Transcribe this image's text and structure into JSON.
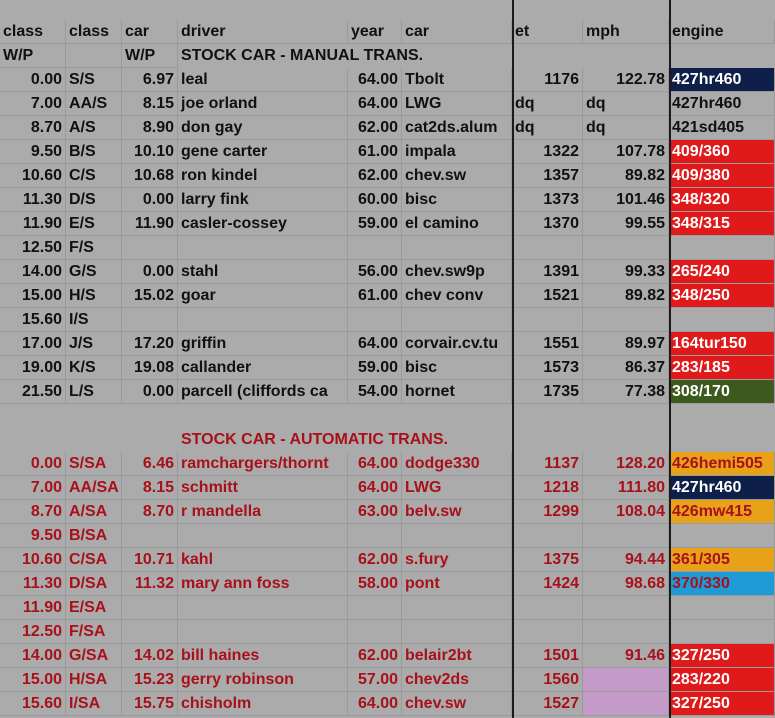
{
  "header": {
    "row1": [
      "class",
      "class",
      "car",
      "driver",
      "year",
      "car",
      "et",
      "mph",
      "engine"
    ],
    "row2": [
      "W/P",
      "",
      "W/P"
    ]
  },
  "sections": {
    "manual_title": "STOCK CAR - MANUAL TRANS.",
    "automatic_title": "STOCK CAR - AUTOMATIC TRANS."
  },
  "manual_rows": [
    {
      "wp": "0.00",
      "cls": "S/S",
      "carwp": "6.97",
      "driver": "leal",
      "year": "64.00",
      "car": "Tbolt",
      "et": "1176",
      "mph": "122.78",
      "engine": "427hr460",
      "eng_bg": "#0e1f4a",
      "eng_fg": "#ffffff"
    },
    {
      "wp": "7.00",
      "cls": "AA/S",
      "carwp": "8.15",
      "driver": "joe orland",
      "year": "64.00",
      "car": "LWG",
      "et": "dq",
      "mph": "dq",
      "engine": "427hr460",
      "eng_bg": "",
      "eng_fg": "#111111"
    },
    {
      "wp": "8.70",
      "cls": "A/S",
      "carwp": "8.90",
      "driver": "don gay",
      "year": "62.00",
      "car": "cat2ds.alum",
      "et": "dq",
      "mph": "dq",
      "engine": "421sd405",
      "eng_bg": "",
      "eng_fg": "#111111"
    },
    {
      "wp": "9.50",
      "cls": "B/S",
      "carwp": "10.10",
      "driver": "gene carter",
      "year": "61.00",
      "car": "impala",
      "et": "1322",
      "mph": "107.78",
      "engine": "409/360",
      "eng_bg": "#e01a1a",
      "eng_fg": "#ffffff"
    },
    {
      "wp": "10.60",
      "cls": "C/S",
      "carwp": "10.68",
      "driver": "ron kindel",
      "year": "62.00",
      "car": "chev.sw",
      "et": "1357",
      "mph": "89.82",
      "engine": "409/380",
      "eng_bg": "#e01a1a",
      "eng_fg": "#ffffff"
    },
    {
      "wp": "11.30",
      "cls": "D/S",
      "carwp": "0.00",
      "driver": "larry fink",
      "year": "60.00",
      "car": "bisc",
      "et": "1373",
      "mph": "101.46",
      "engine": "348/320",
      "eng_bg": "#e01a1a",
      "eng_fg": "#ffffff"
    },
    {
      "wp": "11.90",
      "cls": "E/S",
      "carwp": "11.90",
      "driver": "casler-cossey",
      "year": "59.00",
      "car": "el camino",
      "et": "1370",
      "mph": "99.55",
      "engine": "348/315",
      "eng_bg": "#e01a1a",
      "eng_fg": "#ffffff"
    },
    {
      "wp": "12.50",
      "cls": "F/S",
      "carwp": "",
      "driver": "",
      "year": "",
      "car": "",
      "et": "",
      "mph": "",
      "engine": "",
      "eng_bg": "",
      "eng_fg": "#111111"
    },
    {
      "wp": "14.00",
      "cls": "G/S",
      "carwp": "0.00",
      "driver": "stahl",
      "year": "56.00",
      "car": "chev.sw9p",
      "et": "1391",
      "mph": "99.33",
      "engine": "265/240",
      "eng_bg": "#e01a1a",
      "eng_fg": "#ffffff"
    },
    {
      "wp": "15.00",
      "cls": "H/S",
      "carwp": "15.02",
      "driver": "goar",
      "year": "61.00",
      "car": "chev conv",
      "et": "1521",
      "mph": "89.82",
      "engine": "348/250",
      "eng_bg": "#e01a1a",
      "eng_fg": "#ffffff"
    },
    {
      "wp": "15.60",
      "cls": "I/S",
      "carwp": "",
      "driver": "",
      "year": "",
      "car": "",
      "et": "",
      "mph": "",
      "engine": "",
      "eng_bg": "",
      "eng_fg": "#111111"
    },
    {
      "wp": "17.00",
      "cls": "J/S",
      "carwp": "17.20",
      "driver": "griffin",
      "year": "64.00",
      "car": "corvair.cv.tu",
      "et": "1551",
      "mph": "89.97",
      "engine": "164tur150",
      "eng_bg": "#e01a1a",
      "eng_fg": "#ffffff"
    },
    {
      "wp": "19.00",
      "cls": "K/S",
      "carwp": "19.08",
      "driver": "callander",
      "year": "59.00",
      "car": "bisc",
      "et": "1573",
      "mph": "86.37",
      "engine": "283/185",
      "eng_bg": "#e01a1a",
      "eng_fg": "#ffffff"
    },
    {
      "wp": "21.50",
      "cls": "L/S",
      "carwp": "0.00",
      "driver": "parcell (cliffords ca",
      "year": "54.00",
      "car": "hornet",
      "et": "1735",
      "mph": "77.38",
      "engine": "308/170",
      "eng_bg": "#3d5a1e",
      "eng_fg": "#ffffff"
    }
  ],
  "auto_rows": [
    {
      "wp": "0.00",
      "cls": "S/SA",
      "carwp": "6.46",
      "driver": "ramchargers/thornt",
      "year": "64.00",
      "car": "dodge330",
      "et": "1137",
      "mph": "128.20",
      "engine": "426hemi505",
      "eng_bg": "#e8a21a",
      "eng_fg": "#a8101a"
    },
    {
      "wp": "7.00",
      "cls": "AA/SA",
      "carwp": "8.15",
      "driver": "schmitt",
      "year": "64.00",
      "car": "LWG",
      "et": "1218",
      "mph": "111.80",
      "engine": "427hr460",
      "eng_bg": "#0e1f4a",
      "eng_fg": "#ffffff"
    },
    {
      "wp": "8.70",
      "cls": "A/SA",
      "carwp": "8.70",
      "driver": "r mandella",
      "year": "63.00",
      "car": "belv.sw",
      "et": "1299",
      "mph": "108.04",
      "engine": "426mw415",
      "eng_bg": "#e8a21a",
      "eng_fg": "#a8101a"
    },
    {
      "wp": "9.50",
      "cls": "B/SA",
      "carwp": "",
      "driver": "",
      "year": "",
      "car": "",
      "et": "",
      "mph": "",
      "engine": "",
      "eng_bg": "",
      "eng_fg": "#111111"
    },
    {
      "wp": "10.60",
      "cls": "C/SA",
      "carwp": "10.71",
      "driver": "kahl",
      "year": "62.00",
      "car": "s.fury",
      "et": "1375",
      "mph": "94.44",
      "engine": "361/305",
      "eng_bg": "#e8a21a",
      "eng_fg": "#a8101a"
    },
    {
      "wp": "11.30",
      "cls": "D/SA",
      "carwp": "11.32",
      "driver": "mary ann foss",
      "year": "58.00",
      "car": "pont",
      "et": "1424",
      "mph": "98.68",
      "engine": "370/330",
      "eng_bg": "#1e9bd6",
      "eng_fg": "#a8101a"
    },
    {
      "wp": "11.90",
      "cls": "E/SA",
      "carwp": "",
      "driver": "",
      "year": "",
      "car": "",
      "et": "",
      "mph": "",
      "engine": "",
      "eng_bg": "",
      "eng_fg": "#111111"
    },
    {
      "wp": "12.50",
      "cls": "F/SA",
      "carwp": "",
      "driver": "",
      "year": "",
      "car": "",
      "et": "",
      "mph": "",
      "engine": "",
      "eng_bg": "",
      "eng_fg": "#111111"
    },
    {
      "wp": "14.00",
      "cls": "G/SA",
      "carwp": "14.02",
      "driver": "bill haines",
      "year": "62.00",
      "car": "belair2bt",
      "et": "1501",
      "mph": "91.46",
      "engine": "327/250",
      "eng_bg": "#e01a1a",
      "eng_fg": "#ffffff"
    },
    {
      "wp": "15.00",
      "cls": "H/SA",
      "carwp": "15.23",
      "driver": "gerry robinson",
      "year": "57.00",
      "car": "chev2ds",
      "et": "1560",
      "mph": "",
      "engine": "283/220",
      "eng_bg": "#e01a1a",
      "eng_fg": "#ffffff",
      "mph_bg": "#c49ac8"
    },
    {
      "wp": "15.60",
      "cls": "I/SA",
      "carwp": "15.75",
      "driver": "chisholm",
      "year": "64.00",
      "car": "chev.sw",
      "et": "1527",
      "mph": "",
      "engine": "327/250",
      "eng_bg": "#e01a1a",
      "eng_fg": "#ffffff",
      "mph_bg": "#c49ac8"
    }
  ]
}
